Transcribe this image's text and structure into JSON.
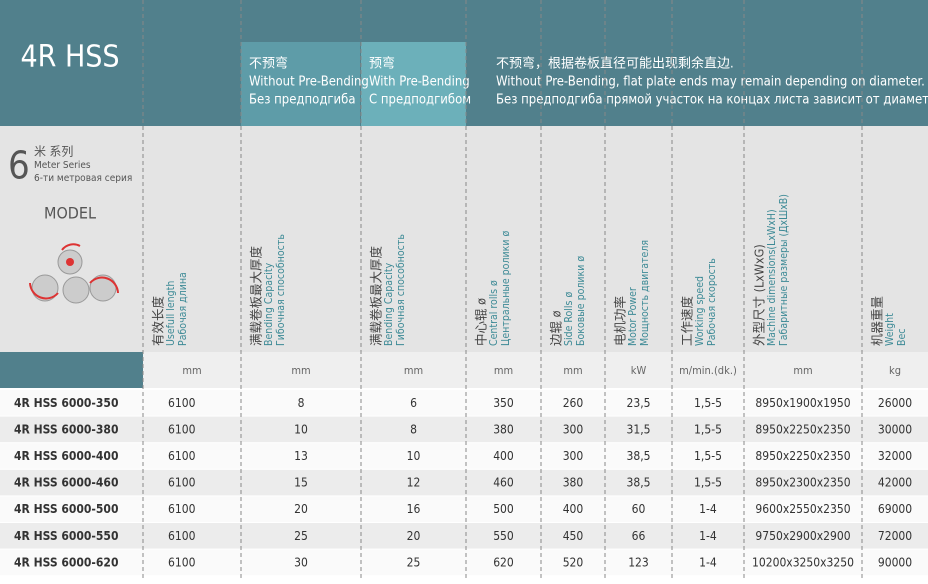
{
  "header": {
    "title": "4R HSS",
    "no_prebend": [
      "不预弯",
      "Without Pre-Bending",
      "Без предподгиба"
    ],
    "prebend": [
      "预弯",
      "With Pre-Bending",
      "С предподгибом"
    ],
    "note": [
      "不预弯，根据卷板直径可能出现剩余直边.",
      "Without Pre-Bending, flat plate ends may remain depending on diameter.",
      "Без предподгиба прямой участок на концах листа зависит от диаметра"
    ]
  },
  "series": {
    "number": "6",
    "lines": [
      "米 系列",
      "Meter Series",
      "6-ти метровая серия"
    ],
    "model_label": "MODEL"
  },
  "columns": [
    {
      "lines": [
        "有效长度",
        "Usefull length",
        "Рабочая длина"
      ],
      "unit": "mm"
    },
    {
      "lines": [
        "满载卷板最大厚度",
        "Bending Capacity",
        "Гибочная способность"
      ],
      "unit": "mm"
    },
    {
      "lines": [
        "满载卷板最大厚度",
        "Bending Capacity",
        "Гибочная способность"
      ],
      "unit": "mm"
    },
    {
      "lines": [
        "中心辊 ø",
        "Central rolls ø",
        "Центральные ролики ø"
      ],
      "unit": "mm"
    },
    {
      "lines": [
        "边辊 ø",
        "Side Rolls ø",
        "Боковые ролики ø"
      ],
      "unit": "mm"
    },
    {
      "lines": [
        "电机功率",
        "Motor Power",
        "Мощность двигателя"
      ],
      "unit": "kW"
    },
    {
      "lines": [
        "工作速度",
        "Working speed",
        "Рабочая скорость"
      ],
      "unit": "m/min.(dk.)"
    },
    {
      "lines": [
        "外型尺寸 (LxWxG)",
        "Machine dimensions(LxWxH)",
        "Габаритные размеры (ДxШxВ)"
      ],
      "unit": "mm"
    },
    {
      "lines": [
        "机器重量",
        "Weight",
        "Вес"
      ],
      "unit": "kg"
    }
  ],
  "rows": [
    [
      "4R HSS 6000-350",
      "6100",
      "8",
      "6",
      "350",
      "260",
      "23,5",
      "1,5-5",
      "8950x1900x1950",
      "26000"
    ],
    [
      "4R HSS 6000-380",
      "6100",
      "10",
      "8",
      "380",
      "300",
      "31,5",
      "1,5-5",
      "8950x2250x2350",
      "30000"
    ],
    [
      "4R HSS 6000-400",
      "6100",
      "13",
      "10",
      "400",
      "300",
      "38,5",
      "1,5-5",
      "8950x2250x2350",
      "32000"
    ],
    [
      "4R HSS 6000-460",
      "6100",
      "15",
      "12",
      "460",
      "380",
      "38,5",
      "1,5-5",
      "8950x2300x2350",
      "42000"
    ],
    [
      "4R HSS 6000-500",
      "6100",
      "20",
      "16",
      "500",
      "400",
      "60",
      "1-4",
      "9600x2550x2350",
      "69000"
    ],
    [
      "4R HSS 6000-550",
      "6100",
      "25",
      "20",
      "550",
      "450",
      "66",
      "1-4",
      "9750x2900x2900",
      "72000"
    ],
    [
      "4R HSS 6000-620",
      "6100",
      "30",
      "25",
      "620",
      "520",
      "123",
      "1-4",
      "10200x3250x3250",
      "90000"
    ]
  ]
}
